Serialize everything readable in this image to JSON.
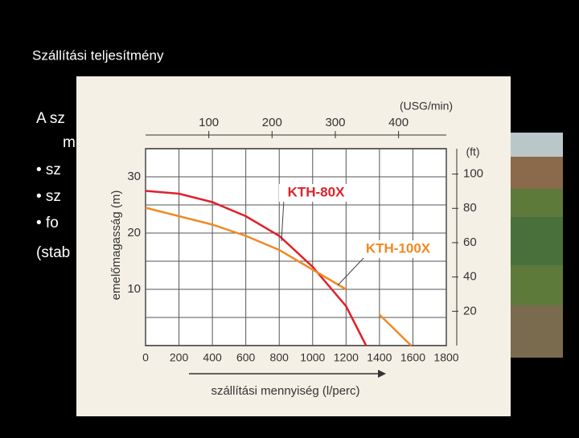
{
  "slide": {
    "title": "Szállítási teljesítmény",
    "body": [
      "A sz",
      "m",
      "• sz",
      "• sz",
      "• fo",
      "(stab"
    ]
  },
  "chart_data": {
    "type": "line",
    "xlabel": "szállítási mennyiség (l/perc)",
    "ylabel": "emelőmagasság (m)",
    "x2label": "(USG/min)",
    "y2label": "(ft)",
    "x": [
      0,
      200,
      400,
      600,
      800,
      1000,
      1200,
      1320,
      1400,
      1590
    ],
    "series": [
      {
        "name": "KTH-80X",
        "color": "#e0202a",
        "values": [
          27.5,
          27,
          25.5,
          23,
          19.5,
          14,
          7,
          0,
          null,
          null
        ]
      },
      {
        "name": "KTH-100X",
        "color": "#f08a24",
        "values": [
          24.5,
          23,
          21.5,
          19.5,
          17,
          13.5,
          10,
          null,
          5.5,
          0
        ]
      }
    ],
    "xlim": [
      0,
      1800
    ],
    "xticks": [
      0,
      200,
      400,
      600,
      800,
      1000,
      1200,
      1400,
      1600,
      1800
    ],
    "ylim": [
      0,
      35
    ],
    "yticks": [
      10,
      20,
      30
    ],
    "x2lim": [
      0,
      475.5
    ],
    "x2ticks": [
      100,
      200,
      300,
      400
    ],
    "y2lim": [
      0,
      114.8
    ],
    "y2ticks": [
      20,
      40,
      60,
      80,
      100
    ],
    "grid": true
  }
}
